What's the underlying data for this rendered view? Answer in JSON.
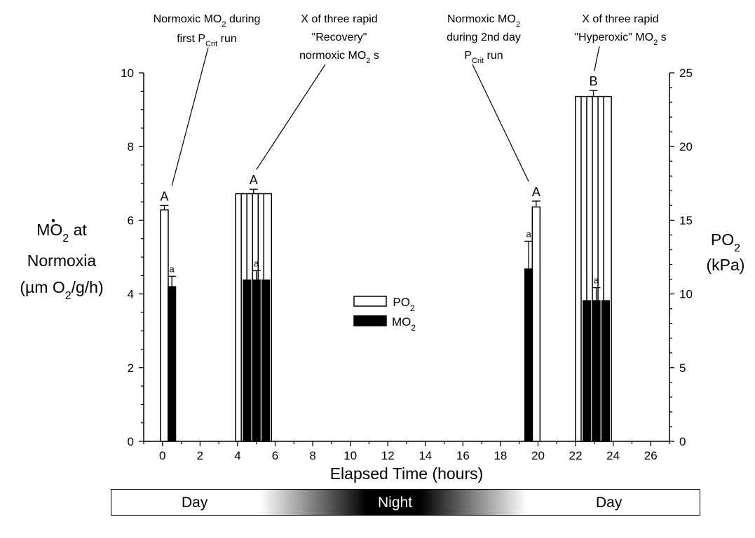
{
  "chart_data": {
    "type": "bar",
    "xlabel": "Elapsed Time (hours)",
    "ylabel_left": [
      "MO2 at",
      "Normoxia",
      "(µm O2/g/h)"
    ],
    "ylabel_right": [
      "PO2",
      "(kPa)"
    ],
    "xlim": [
      -1,
      27
    ],
    "ylim_left": [
      0,
      10
    ],
    "ylim_right": [
      0,
      25
    ],
    "xticks": [
      0,
      2,
      4,
      6,
      8,
      10,
      12,
      14,
      16,
      18,
      20,
      22,
      24,
      26
    ],
    "yticks_left": [
      0,
      2,
      4,
      6,
      8,
      10
    ],
    "yticks_right": [
      0,
      5,
      10,
      15,
      20,
      25
    ],
    "grid": false,
    "legend_position": "center",
    "legend": [
      {
        "label": "PO2",
        "style": "open"
      },
      {
        "label": "MO2",
        "style": "filled"
      }
    ],
    "series": [
      {
        "name": "PO2",
        "axis": "right",
        "bars": [
          {
            "x": [
              0.1
            ],
            "value": 15.7,
            "err": 0.3,
            "letter": "A"
          },
          {
            "x": [
              4.1,
              4.4,
              4.7,
              5.0,
              5.3,
              5.6
            ],
            "value": 16.8,
            "err": 0.3,
            "letter": "A"
          },
          {
            "x": [
              19.9
            ],
            "value": 15.9,
            "err": 0.4,
            "letter": "A"
          },
          {
            "x": [
              22.2,
              22.5,
              22.8,
              23.1,
              23.4,
              23.7
            ],
            "value": 23.4,
            "err": 0.4,
            "letter": "B"
          }
        ]
      },
      {
        "name": "MO2",
        "axis": "left",
        "bars": [
          {
            "x": [
              0.5
            ],
            "value": 4.2,
            "err": 0.28,
            "letter": "a"
          },
          {
            "x": [
              4.5,
              5.0,
              5.5
            ],
            "value": 4.38,
            "err": 0.25,
            "letter": "a"
          },
          {
            "x": [
              19.5
            ],
            "value": 4.68,
            "err": 0.75,
            "letter": "a"
          },
          {
            "x": [
              22.6,
              23.1,
              23.6
            ],
            "value": 3.82,
            "err": 0.35,
            "letter": "a"
          }
        ]
      }
    ],
    "annotations": [
      {
        "lines": [
          "Normoxic MO2 during",
          "first PCrit run"
        ],
        "target_x": 0.5
      },
      {
        "lines": [
          "X of three rapid",
          "\"Recovery\"",
          "normoxic MO2 s"
        ],
        "target_x": 5.0
      },
      {
        "lines": [
          "Normoxic MO2",
          "during 2nd day",
          "PCrit run"
        ],
        "target_x": 19.5
      },
      {
        "lines": [
          "X of three rapid",
          "\"Hyperoxic\" MO2 s"
        ],
        "target_x": 23.0
      }
    ]
  },
  "time_bar": {
    "day1": "Day",
    "night": "Night",
    "day2": "Day"
  }
}
